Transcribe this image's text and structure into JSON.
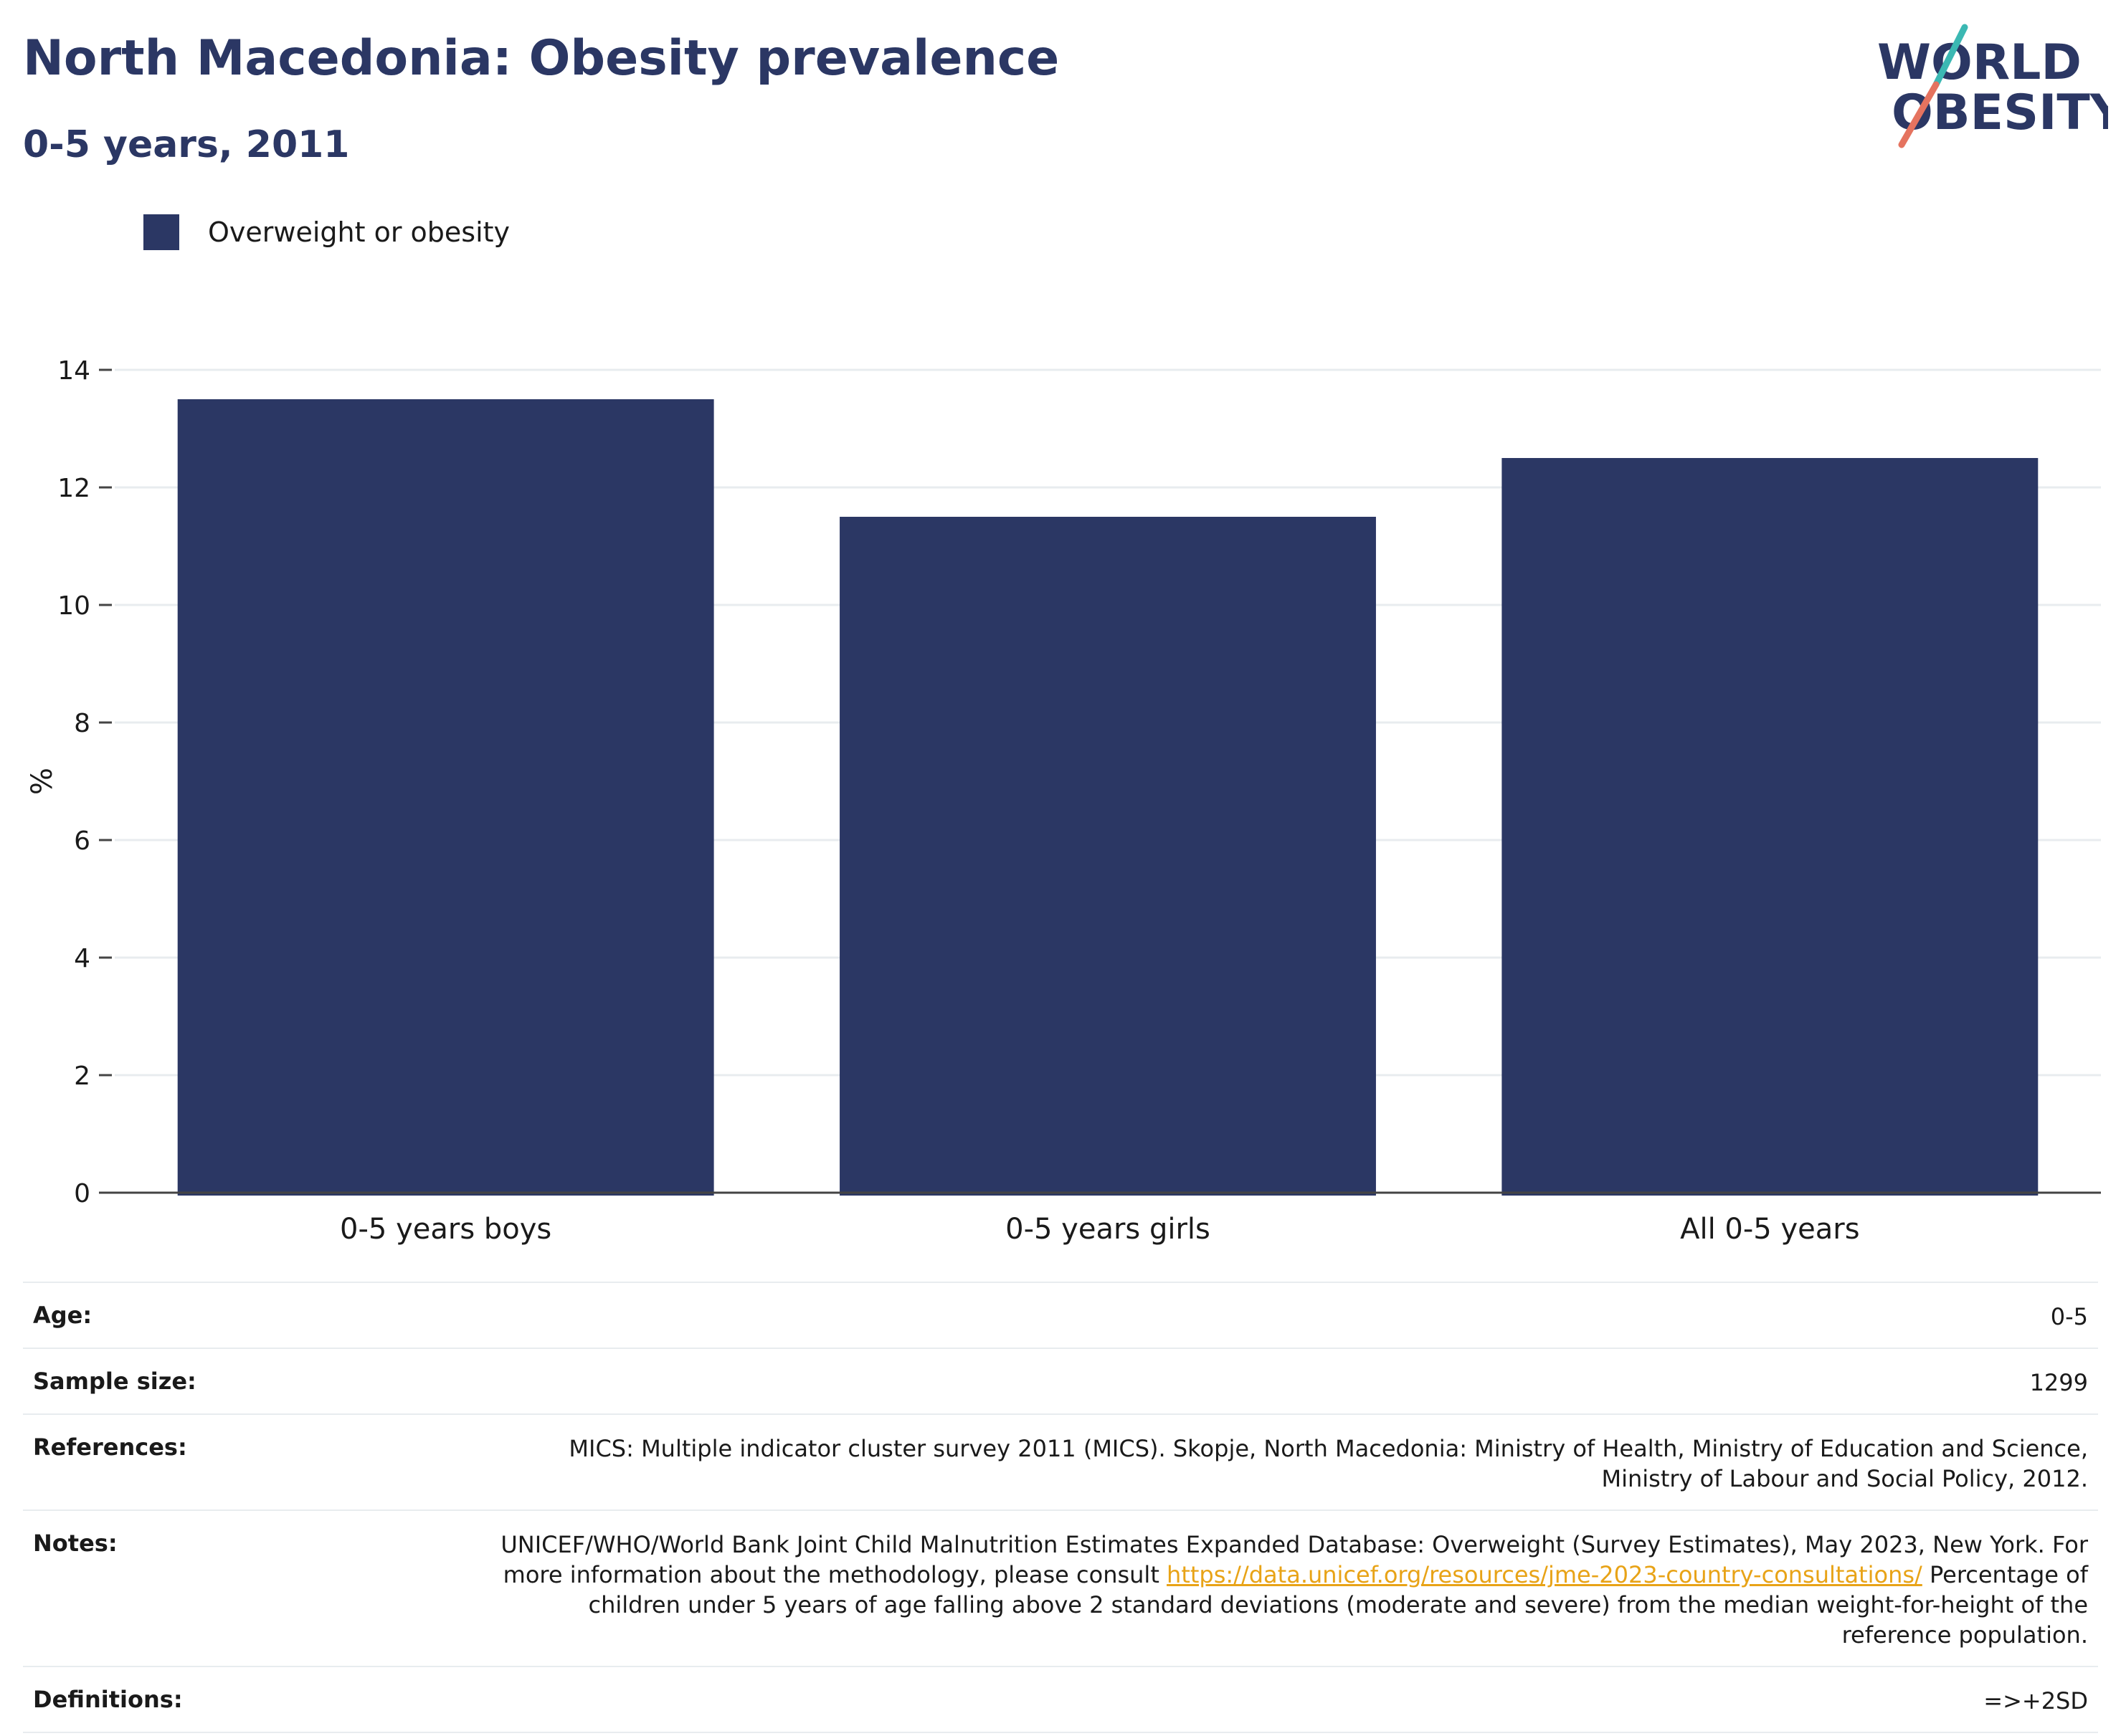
{
  "header": {
    "title": "North Macedonia: Obesity prevalence",
    "subtitle": "0-5 years, 2011"
  },
  "logo": {
    "line1": "WORLD",
    "line2": "OBESITY",
    "text_color": "#2b3764",
    "slash_top_color": "#3bb8b3",
    "slash_bottom_color": "#e5735f"
  },
  "legend": {
    "label": "Overweight or obesity",
    "color": "#2b3764"
  },
  "chart_data": {
    "type": "bar",
    "categories": [
      "0-5 years boys",
      "0-5 years girls",
      "All 0-5 years"
    ],
    "series": [
      {
        "name": "Overweight or obesity",
        "values": [
          13.5,
          11.5,
          12.5
        ],
        "color": "#2b3764"
      }
    ],
    "xlabel": "",
    "ylabel": "%",
    "ylim": [
      0,
      14
    ],
    "yticks": [
      0,
      2,
      4,
      6,
      8,
      10,
      12,
      14
    ],
    "grid": true,
    "legend_position": "top-left"
  },
  "info": [
    {
      "key": "Age:",
      "value": "0-5"
    },
    {
      "key": "Sample size:",
      "value": "1299"
    },
    {
      "key": "References:",
      "value": "MICS: Multiple indicator cluster survey 2011 (MICS). Skopje, North Macedonia: Ministry of Health, Ministry of Education and Science, Ministry of Labour and Social Policy, 2012."
    },
    {
      "key": "Notes:",
      "value_before_link": "UNICEF/WHO/World Bank Joint Child Malnutrition Estimates Expanded Database: Overweight (Survey Estimates), May 2023, New York. For more information about the methodology, please consult ",
      "link": "https://data.unicef.org/resources/jme-2023-country-consultations/",
      "value_after_link": " Percentage of children under 5 years of age falling above 2 standard deviations (moderate and severe) from the median weight-for-height of the reference population."
    },
    {
      "key": "Definitions:",
      "value": "=>+2SD"
    }
  ]
}
